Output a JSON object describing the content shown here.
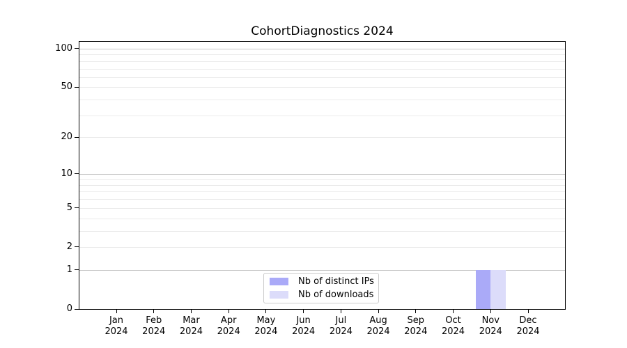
{
  "title": "CohortDiagnostics 2024",
  "legend": {
    "items": [
      {
        "label": "Nb of distinct IPs",
        "color": "#aaaaf8"
      },
      {
        "label": "Nb of downloads",
        "color": "#dcdcfa"
      }
    ]
  },
  "colors": {
    "major_gridline": "#c6c6c6",
    "minor_gridline": "#ebebeb",
    "axis": "#000000",
    "background": "#ffffff"
  },
  "chart_data": {
    "type": "bar",
    "title": "CohortDiagnostics 2024",
    "categories": [
      "Jan",
      "Feb",
      "Mar",
      "Apr",
      "May",
      "Jun",
      "Jul",
      "Aug",
      "Sep",
      "Oct",
      "Nov",
      "Dec"
    ],
    "category_year": "2024",
    "series": [
      {
        "name": "Nb of distinct IPs",
        "color": "#aaaaf8",
        "values": [
          0,
          0,
          0,
          0,
          0,
          0,
          0,
          0,
          0,
          0,
          1,
          0
        ]
      },
      {
        "name": "Nb of downloads",
        "color": "#dcdcfa",
        "values": [
          0,
          0,
          0,
          0,
          0,
          0,
          0,
          0,
          0,
          0,
          1,
          0
        ]
      }
    ],
    "xlabel": "",
    "ylabel": "",
    "y_axis": {
      "scale": "log1p",
      "tick_values": [
        0,
        1,
        2,
        5,
        10,
        20,
        50,
        100
      ],
      "major_gridlines": [
        1,
        10,
        100
      ],
      "minor_gridlines": [
        2,
        3,
        4,
        5,
        6,
        7,
        8,
        9,
        20,
        30,
        40,
        50,
        60,
        70,
        80,
        90
      ],
      "range": [
        0,
        113
      ]
    },
    "grid": "horizontal",
    "legend_position": "lower center inside plot"
  }
}
